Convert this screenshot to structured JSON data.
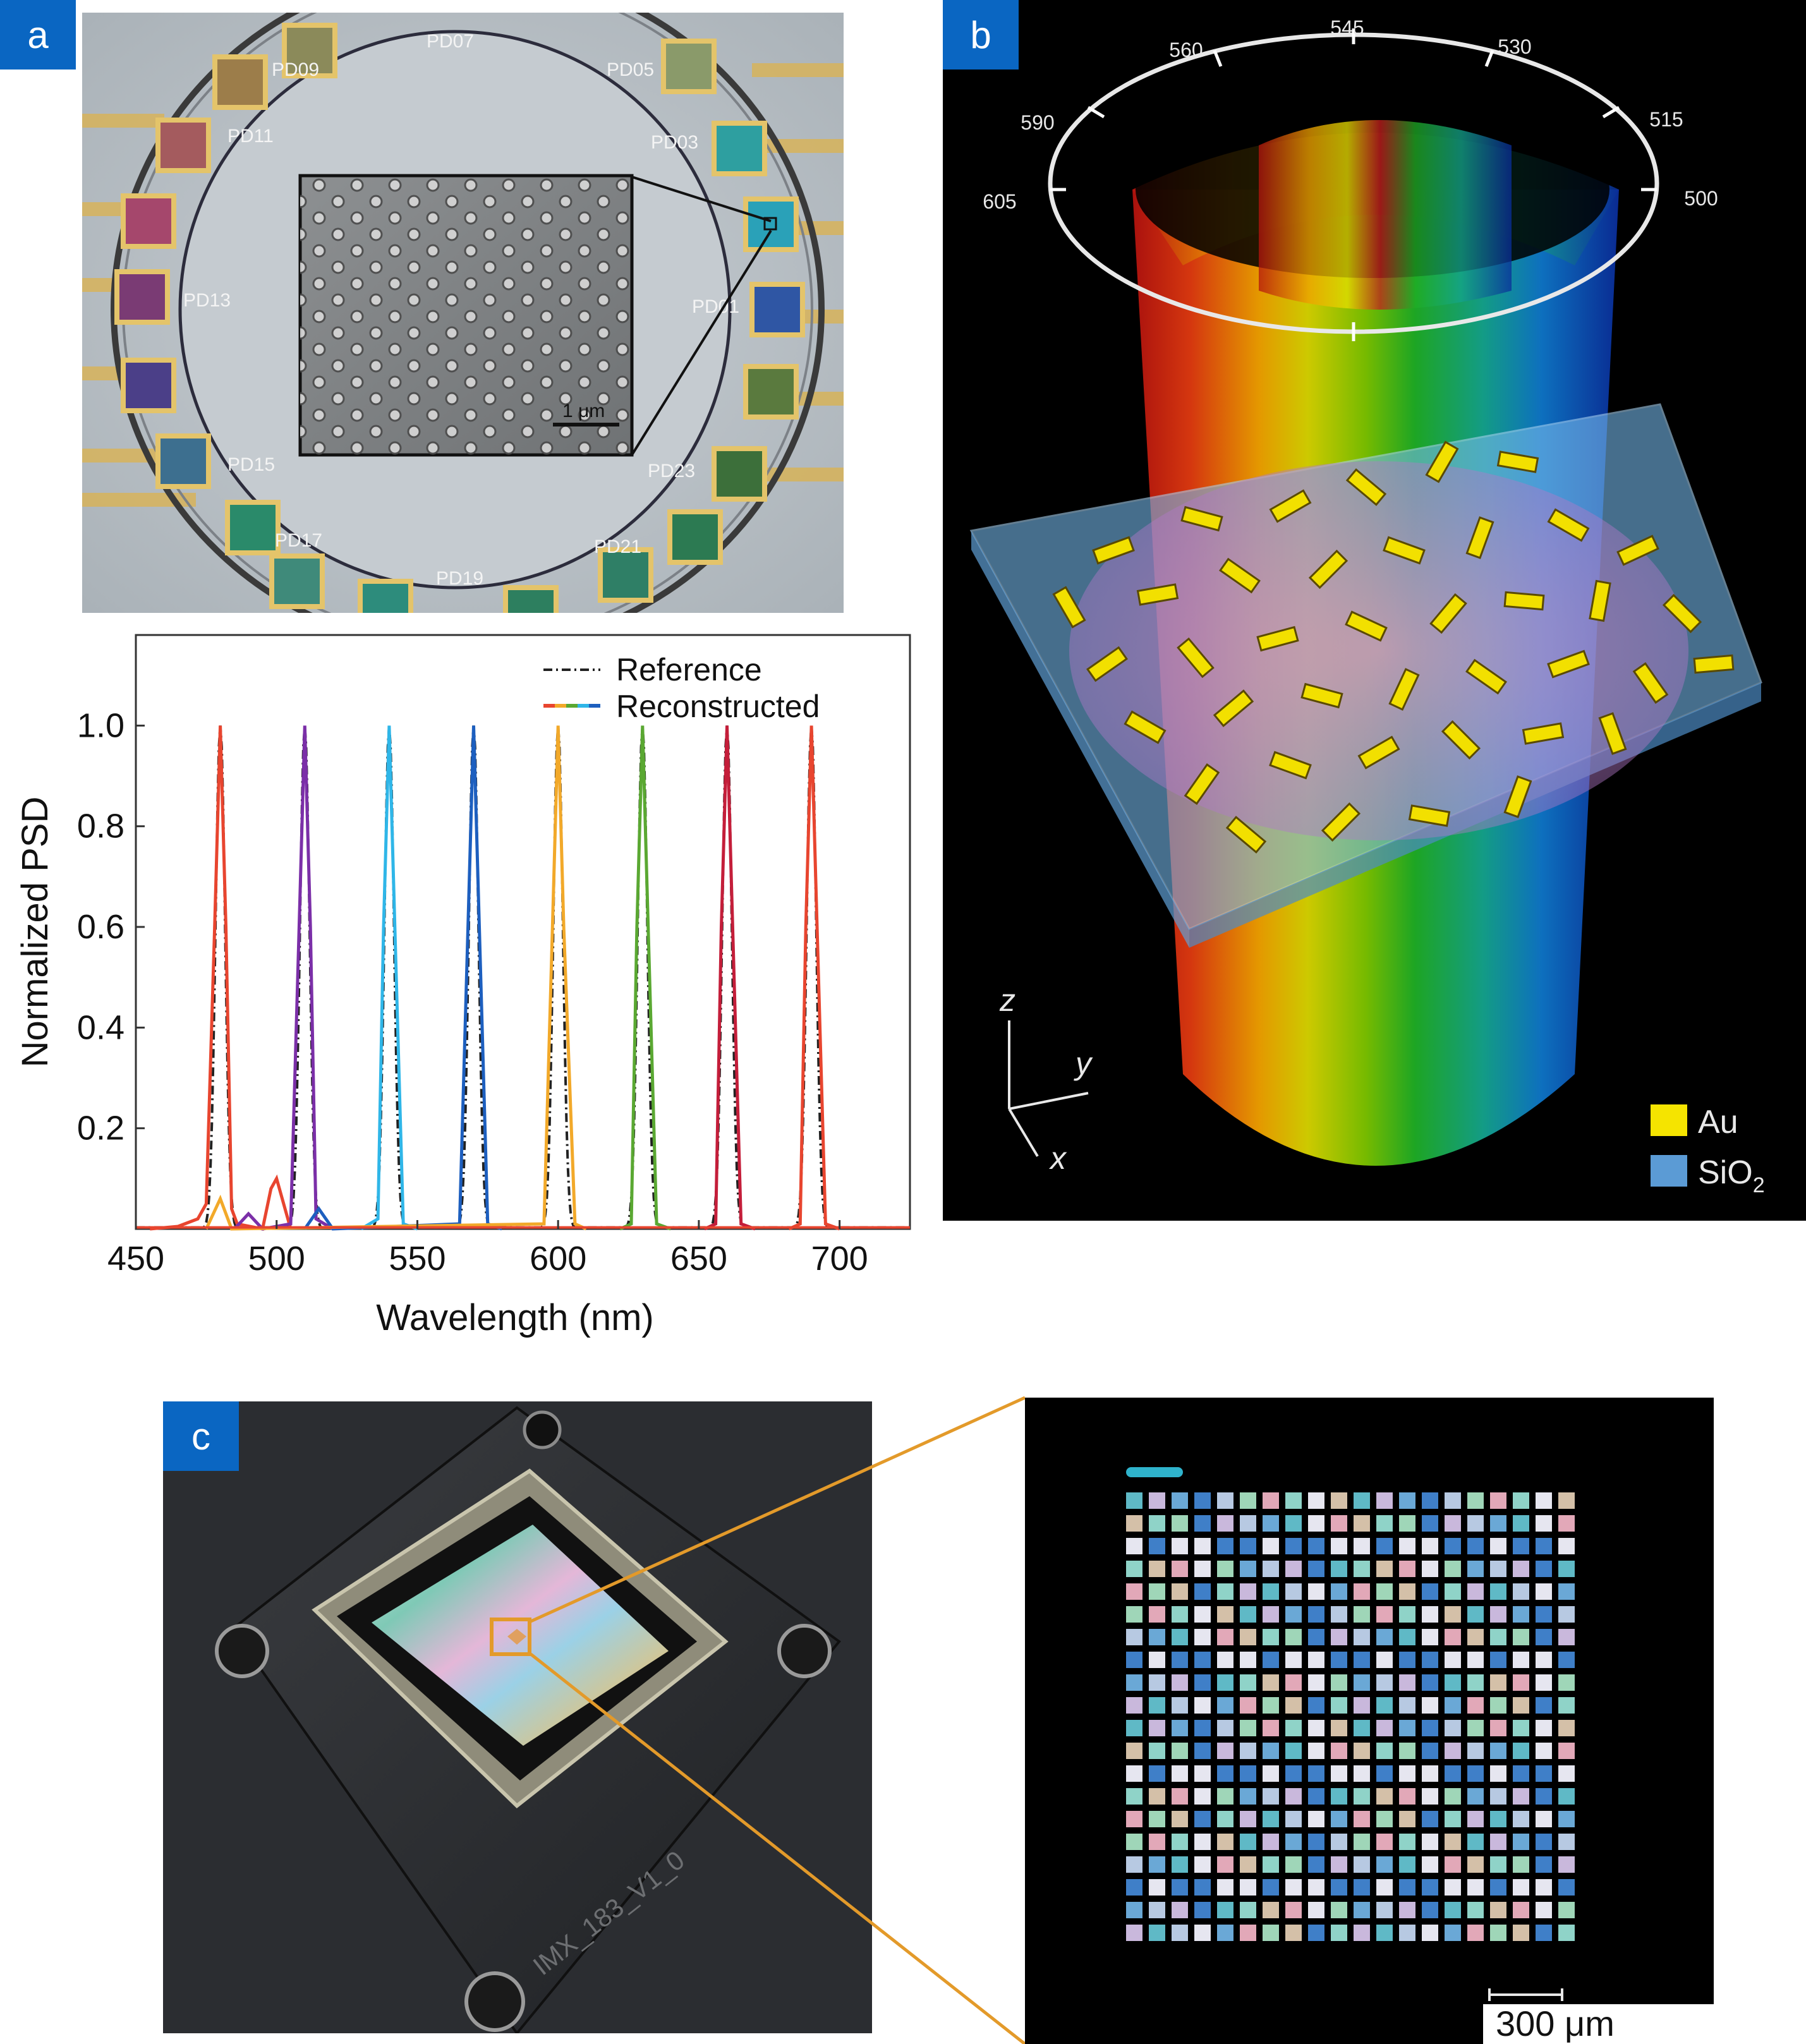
{
  "panels": {
    "a": {
      "label": "a"
    },
    "b": {
      "label": "b"
    },
    "c": {
      "label": "c"
    }
  },
  "photo_a": {
    "pd_labels": [
      "PD07",
      "PD09",
      "PD05",
      "PD11",
      "PD03",
      "PD13",
      "PD01",
      "PD15",
      "PD23",
      "PD17",
      "PD21",
      "PD19"
    ],
    "scale_bar": "1 μm"
  },
  "render_b": {
    "wavelength_ring_labels": [
      "605",
      "590",
      "560",
      "545",
      "530",
      "515",
      "500"
    ],
    "axis_labels": {
      "z": "z",
      "y": "y",
      "x": "x"
    },
    "legend": [
      {
        "label": "Au",
        "color": "#f5e400"
      },
      {
        "label": "SiO",
        "subscript": "2",
        "color": "#5b9bd5"
      }
    ]
  },
  "photo_c": {
    "chip_text": "IMX_183_V1_0",
    "scale_bar": "300 μm"
  },
  "chart_data": {
    "type": "line",
    "xlabel": "Wavelength (nm)",
    "ylabel": "Normalized PSD",
    "xlim": [
      450,
      725
    ],
    "ylim": [
      0,
      1.18
    ],
    "xticks": [
      450,
      500,
      550,
      600,
      650,
      700
    ],
    "yticks": [
      0.2,
      0.4,
      0.6,
      0.8,
      1.0
    ],
    "ytick_labels": [
      "0.2",
      "0.4",
      "0.6",
      "0.8",
      "1.0"
    ],
    "legend": [
      {
        "label": "Reference",
        "style": "dash-dot",
        "color": "#222222"
      },
      {
        "label": "Reconstructed",
        "style": "rainbow"
      }
    ],
    "legend_position": "top-right",
    "grid": false,
    "series": [
      {
        "peak": 480,
        "color": "#e8452f",
        "reconstructed": [
          [
            455,
            0
          ],
          [
            465,
            0.005
          ],
          [
            472,
            0.02
          ],
          [
            475,
            0.05
          ],
          [
            478,
            0.6
          ],
          [
            480,
            1.0
          ],
          [
            482,
            0.6
          ],
          [
            484,
            0.04
          ],
          [
            486,
            0.01
          ],
          [
            495,
            0.0
          ],
          [
            498,
            0.08
          ],
          [
            500,
            0.1
          ],
          [
            502,
            0.06
          ],
          [
            505,
            0.0
          ]
        ]
      },
      {
        "peak": 510,
        "color": "#7b2fa8",
        "reconstructed": [
          [
            485,
            0.0
          ],
          [
            490,
            0.03
          ],
          [
            495,
            0.0
          ],
          [
            505,
            0.01
          ],
          [
            508,
            0.6
          ],
          [
            510,
            1.0
          ],
          [
            512,
            0.6
          ],
          [
            514,
            0.02
          ],
          [
            520,
            0.0
          ]
        ]
      },
      {
        "peak": 540,
        "color": "#2fb6e8",
        "reconstructed": [
          [
            530,
            0.0
          ],
          [
            536,
            0.02
          ],
          [
            538,
            0.6
          ],
          [
            540,
            1.0
          ],
          [
            542,
            0.6
          ],
          [
            545,
            0.01
          ],
          [
            550,
            0.0
          ]
        ]
      },
      {
        "peak": 570,
        "color": "#1d5fbf",
        "reconstructed": [
          [
            510,
            0.0
          ],
          [
            515,
            0.04
          ],
          [
            520,
            0.0
          ],
          [
            565,
            0.01
          ],
          [
            568,
            0.6
          ],
          [
            570,
            1.0
          ],
          [
            572,
            0.6
          ],
          [
            575,
            0.01
          ],
          [
            580,
            0.0
          ]
        ]
      },
      {
        "peak": 600,
        "color": "#f2a92a",
        "reconstructed": [
          [
            475,
            0.0
          ],
          [
            480,
            0.06
          ],
          [
            484,
            0.0
          ],
          [
            595,
            0.01
          ],
          [
            598,
            0.6
          ],
          [
            600,
            1.0
          ],
          [
            602,
            0.6
          ],
          [
            606,
            0.01
          ],
          [
            610,
            0.0
          ]
        ]
      },
      {
        "peak": 630,
        "color": "#5aa832",
        "reconstructed": [
          [
            622,
            0.0
          ],
          [
            626,
            0.01
          ],
          [
            628,
            0.6
          ],
          [
            630,
            1.0
          ],
          [
            632,
            0.6
          ],
          [
            635,
            0.01
          ],
          [
            640,
            0.0
          ]
        ]
      },
      {
        "peak": 660,
        "color": "#c41e3a",
        "reconstructed": [
          [
            652,
            0.0
          ],
          [
            656,
            0.01
          ],
          [
            658,
            0.6
          ],
          [
            660,
            1.0
          ],
          [
            662,
            0.6
          ],
          [
            665,
            0.01
          ],
          [
            670,
            0.0
          ]
        ]
      },
      {
        "peak": 690,
        "color": "#e8452f",
        "reconstructed": [
          [
            682,
            0.0
          ],
          [
            686,
            0.01
          ],
          [
            688,
            0.6
          ],
          [
            690,
            1.0
          ],
          [
            692,
            0.6
          ],
          [
            695,
            0.01
          ],
          [
            700,
            0.0
          ]
        ]
      }
    ]
  }
}
